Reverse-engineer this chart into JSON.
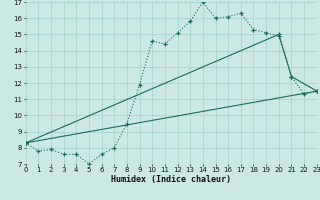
{
  "xlabel": "Humidex (Indice chaleur)",
  "bg_color": "#cce8e5",
  "grid_color": "#aad4d0",
  "line_color": "#1a6b5a",
  "xmin": 0,
  "xmax": 23,
  "ymin": 7,
  "ymax": 17,
  "line1_x": [
    0,
    1,
    2,
    3,
    4,
    5,
    6,
    7,
    8,
    9,
    10,
    11,
    12,
    13,
    14,
    15,
    16,
    17,
    18,
    19,
    20,
    21,
    22,
    23
  ],
  "line1_y": [
    8.3,
    7.8,
    7.9,
    7.6,
    7.6,
    7.0,
    7.6,
    8.0,
    9.5,
    11.9,
    14.6,
    14.4,
    15.1,
    15.8,
    17.0,
    16.0,
    16.1,
    16.3,
    15.3,
    15.1,
    14.9,
    12.4,
    11.3,
    11.5
  ],
  "line2_x": [
    0,
    20,
    21,
    23
  ],
  "line2_y": [
    8.3,
    15.0,
    12.4,
    11.5
  ],
  "line3_x": [
    0,
    23
  ],
  "line3_y": [
    8.3,
    11.5
  ]
}
